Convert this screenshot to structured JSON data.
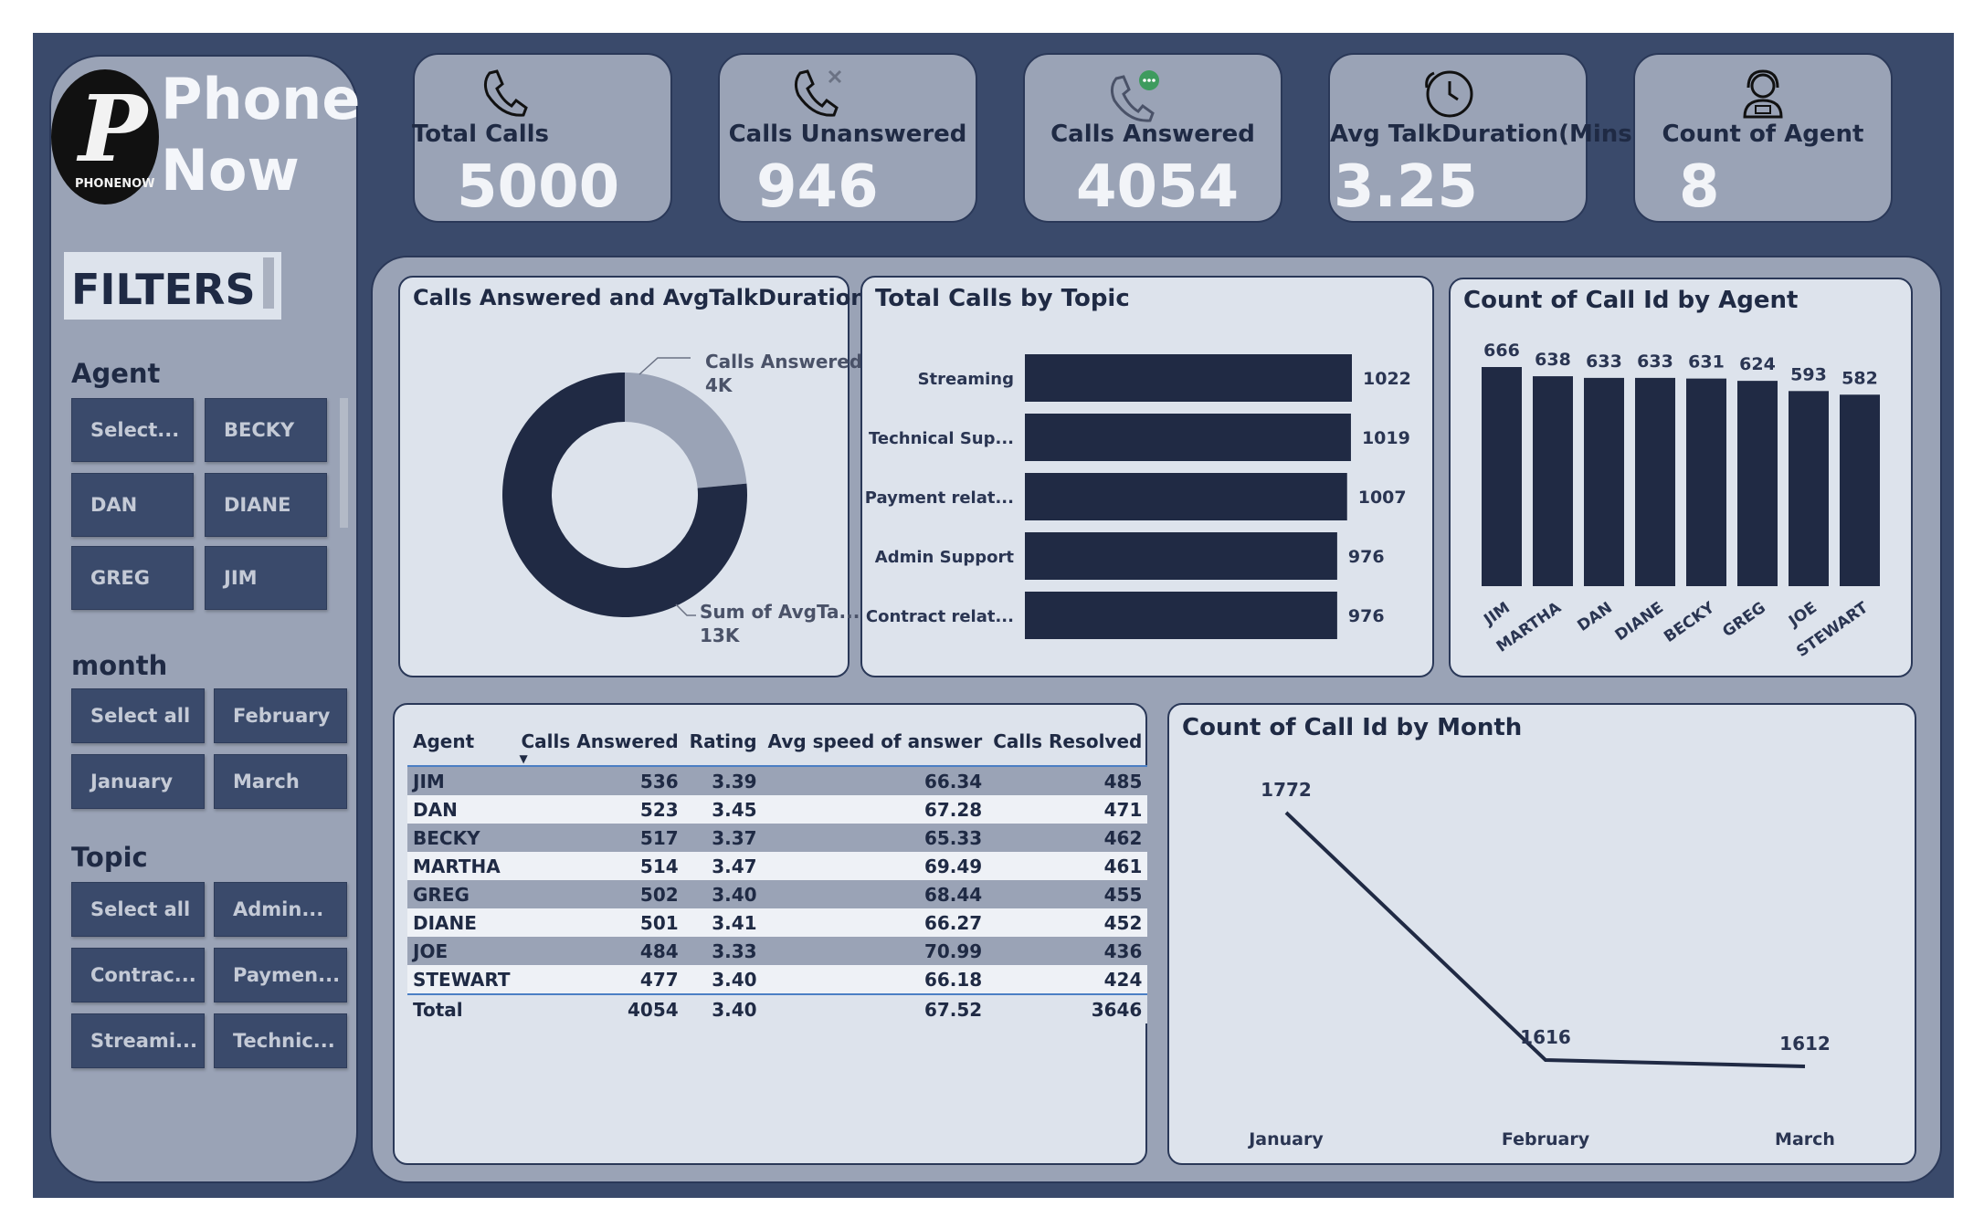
{
  "brand": {
    "line1": "Phone",
    "line2": "Now",
    "logo_letter": "P",
    "logo_small": "PHONENOW"
  },
  "filters": {
    "title": "FILTERS",
    "agent_label": "Agent",
    "agent_options": [
      "Select...",
      "BECKY",
      "DAN",
      "DIANE",
      "GREG",
      "JIM"
    ],
    "month_label": "month",
    "month_options": [
      "Select all",
      "February",
      "January",
      "March"
    ],
    "topic_label": "Topic",
    "topic_options": [
      "Select all",
      "Admin...",
      "Contrac...",
      "Paymen...",
      "Streami...",
      "Technic..."
    ]
  },
  "kpis": [
    {
      "title": "Total Calls",
      "value": "5000",
      "icon": "phone-icon"
    },
    {
      "title": "Calls Unanswered",
      "value": "946",
      "icon": "missed-call-icon"
    },
    {
      "title": "Calls Answered",
      "value": "4054",
      "icon": "phone-message-icon"
    },
    {
      "title": "Avg TalkDuration(Mins)",
      "value": "3.25",
      "icon": "phone-clock-icon"
    },
    {
      "title": "Count of Agent",
      "value": "8",
      "icon": "agent-headset-icon"
    }
  ],
  "donut": {
    "title": "Calls Answered and AvgTalkDuration",
    "label_a_name": "Calls Answered",
    "label_a_value": "4K",
    "label_b_name": "Sum of AvgTa...",
    "label_b_value": "13K"
  },
  "topic_chart": {
    "title": "Total Calls by Topic"
  },
  "agent_chart": {
    "title": "Count of Call Id by Agent"
  },
  "month_chart": {
    "title": "Count of Call Id by Month"
  },
  "chart_data": [
    {
      "type": "pie",
      "title": "Calls Answered and AvgTalkDuration",
      "categories": [
        "Calls Answered",
        "Sum of AvgTa..."
      ],
      "values": [
        4054,
        13174
      ],
      "colors": [
        "#9aa3b6",
        "#202a44"
      ]
    },
    {
      "type": "bar",
      "orientation": "horizontal",
      "title": "Total Calls by Topic",
      "categories": [
        "Streaming",
        "Technical Sup...",
        "Payment relat...",
        "Admin Support",
        "Contract relat..."
      ],
      "values": [
        1022,
        1019,
        1007,
        976,
        976
      ],
      "color": "#202a44"
    },
    {
      "type": "bar",
      "title": "Count of Call Id by Agent",
      "categories": [
        "JIM",
        "MARTHA",
        "DAN",
        "DIANE",
        "BECKY",
        "GREG",
        "JOE",
        "STEWART"
      ],
      "values": [
        666,
        638,
        633,
        633,
        631,
        624,
        593,
        582
      ],
      "color": "#202a44"
    },
    {
      "type": "line",
      "title": "Count of Call Id by Month",
      "categories": [
        "January",
        "February",
        "March"
      ],
      "values": [
        1772,
        1616,
        1612
      ],
      "color": "#202a44"
    }
  ],
  "table": {
    "columns": [
      "Agent",
      "Calls Answered",
      "Rating",
      "Avg speed of answer",
      "Calls Resolved"
    ],
    "rows": [
      [
        "JIM",
        "536",
        "3.39",
        "66.34",
        "485"
      ],
      [
        "DAN",
        "523",
        "3.45",
        "67.28",
        "471"
      ],
      [
        "BECKY",
        "517",
        "3.37",
        "65.33",
        "462"
      ],
      [
        "MARTHA",
        "514",
        "3.47",
        "69.49",
        "461"
      ],
      [
        "GREG",
        "502",
        "3.40",
        "68.44",
        "455"
      ],
      [
        "DIANE",
        "501",
        "3.41",
        "66.27",
        "452"
      ],
      [
        "JOE",
        "484",
        "3.33",
        "70.99",
        "436"
      ],
      [
        "STEWART",
        "477",
        "3.40",
        "66.18",
        "424"
      ]
    ],
    "total": [
      "Total",
      "4054",
      "3.40",
      "67.52",
      "3646"
    ]
  }
}
